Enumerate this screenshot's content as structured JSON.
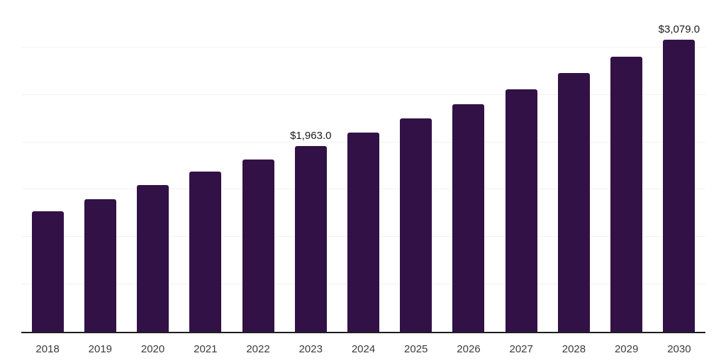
{
  "chart_data": {
    "type": "bar",
    "title": "",
    "xlabel": "",
    "ylabel": "",
    "categories": [
      "2018",
      "2019",
      "2020",
      "2021",
      "2022",
      "2023",
      "2024",
      "2025",
      "2026",
      "2027",
      "2028",
      "2029",
      "2030"
    ],
    "values": [
      1275,
      1395,
      1545,
      1690,
      1820,
      1963.0,
      2100,
      2250,
      2400,
      2560,
      2730,
      2900,
      3079.0
    ],
    "data_labels": {
      "2023": "$1,963.0",
      "2030": "$3,079.0"
    },
    "ylim": [
      0,
      3500
    ],
    "gridline_step": 500,
    "grid": true,
    "legend": "none",
    "y_axis_labels_visible": false,
    "colors": {
      "bar": "#321146",
      "axis_line": "#1f1f1f",
      "gridline": "#f2f2f2",
      "data_label": "#1a1a1a",
      "tick_label": "#3a3a3a",
      "background": "#ffffff"
    }
  }
}
